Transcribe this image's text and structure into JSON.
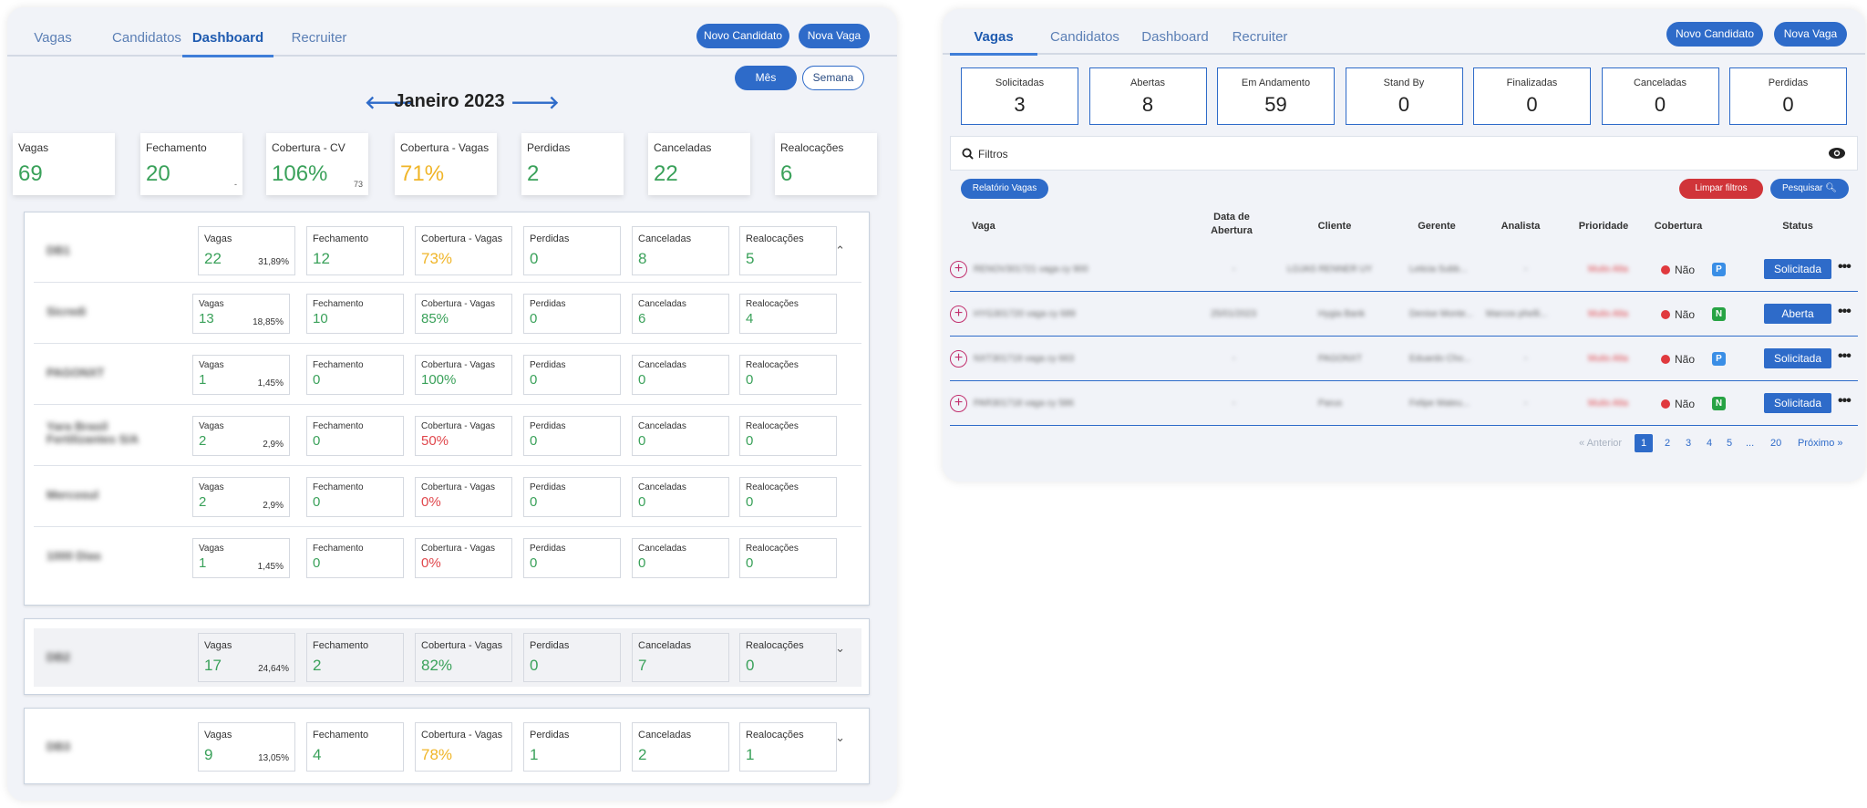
{
  "left": {
    "tabs": [
      "Vagas",
      "Candidatos",
      "Dashboard",
      "Recruiter"
    ],
    "active_tab": "Dashboard",
    "buttons": {
      "novo_candidato": "Novo Candidato",
      "nova_vaga": "Nova Vaga",
      "mes": "Mês",
      "semana": "Semana"
    },
    "month_title": "Janeiro 2023",
    "prev_arrow": "🡐",
    "next_arrow": "🡒",
    "kpis": [
      {
        "label": "Vagas",
        "value": "69",
        "sub": "",
        "color": "#3aa15a"
      },
      {
        "label": "Fechamento",
        "value": "20",
        "sub": "-",
        "color": "#3aa15a"
      },
      {
        "label": "Cobertura - CV",
        "value": "106%",
        "sub": "73",
        "color": "#3aa15a"
      },
      {
        "label": "Cobertura - Vagas",
        "value": "71%",
        "sub": "",
        "color": "#f0b528"
      },
      {
        "label": "Perdidas",
        "value": "2",
        "sub": "",
        "color": "#3aa15a"
      },
      {
        "label": "Canceladas",
        "value": "22",
        "sub": "",
        "color": "#3aa15a"
      },
      {
        "label": "Realocações",
        "value": "6",
        "sub": "",
        "color": "#3aa15a"
      }
    ],
    "cell_labels": [
      "Vagas",
      "Fechamento",
      "Cobertura - Vagas",
      "Perdidas",
      "Canceladas",
      "Realocações"
    ],
    "groups": [
      {
        "name": "DB1",
        "vagas": "22",
        "pct": "31,89%",
        "fechamento": "12",
        "cobertura": "73%",
        "cobertura_color": "yellow",
        "perdidas": "0",
        "canceladas": "8",
        "realocacoes": "5",
        "chevron": "⌃",
        "rows": [
          {
            "name": "Sicredi",
            "vagas": "13",
            "pct": "18,85%",
            "fechamento": "10",
            "cobertura": "85%",
            "cobertura_color": "green",
            "perdidas": "0",
            "canceladas": "6",
            "realocacoes": "4"
          },
          {
            "name": "PAGONXT",
            "vagas": "1",
            "pct": "1,45%",
            "fechamento": "0",
            "cobertura": "100%",
            "cobertura_color": "green",
            "perdidas": "0",
            "canceladas": "0",
            "realocacoes": "0"
          },
          {
            "name": "Yara Brasil Fertilizantes S/A",
            "vagas": "2",
            "pct": "2,9%",
            "fechamento": "0",
            "cobertura": "50%",
            "cobertura_color": "red",
            "perdidas": "0",
            "canceladas": "0",
            "realocacoes": "0"
          },
          {
            "name": "Mercosul",
            "vagas": "2",
            "pct": "2,9%",
            "fechamento": "0",
            "cobertura": "0%",
            "cobertura_color": "red",
            "perdidas": "0",
            "canceladas": "0",
            "realocacoes": "0"
          },
          {
            "name": "1000 Dias",
            "vagas": "1",
            "pct": "1,45%",
            "fechamento": "0",
            "cobertura": "0%",
            "cobertura_color": "red",
            "perdidas": "0",
            "canceladas": "0",
            "realocacoes": "0"
          }
        ]
      },
      {
        "name": "DB2",
        "vagas": "17",
        "pct": "24,64%",
        "fechamento": "2",
        "cobertura": "82%",
        "cobertura_color": "green",
        "perdidas": "0",
        "canceladas": "7",
        "realocacoes": "0",
        "chevron": "⌄",
        "rows": []
      },
      {
        "name": "DB3",
        "vagas": "9",
        "pct": "13,05%",
        "fechamento": "4",
        "cobertura": "78%",
        "cobertura_color": "yellow",
        "perdidas": "1",
        "canceladas": "2",
        "realocacoes": "1",
        "chevron": "⌄",
        "rows": []
      }
    ]
  },
  "right": {
    "tabs": [
      "Vagas",
      "Candidatos",
      "Dashboard",
      "Recruiter"
    ],
    "active_tab": "Vagas",
    "buttons": {
      "novo_candidato": "Novo Candidato",
      "nova_vaga": "Nova Vaga",
      "relatorio": "Relatório Vagas",
      "limpar": "Limpar filtros",
      "pesquisar": "Pesquisar"
    },
    "stats": [
      {
        "label": "Solicitadas",
        "value": "3"
      },
      {
        "label": "Abertas",
        "value": "8"
      },
      {
        "label": "Em Andamento",
        "value": "59"
      },
      {
        "label": "Stand By",
        "value": "0"
      },
      {
        "label": "Finalizadas",
        "value": "0"
      },
      {
        "label": "Canceladas",
        "value": "0"
      },
      {
        "label": "Perdidas",
        "value": "0"
      }
    ],
    "filters_label": "Filtros",
    "columns": {
      "vaga": "Vaga",
      "data_abertura_1": "Data de",
      "data_abertura_2": "Abertura",
      "cliente": "Cliente",
      "gerente": "Gerente",
      "analista": "Analista",
      "prioridade": "Prioridade",
      "cobertura": "Cobertura",
      "status": "Status"
    },
    "rows": [
      {
        "vaga": "RENOV301721 vaga cy 900",
        "data": "-",
        "cliente": "LOJAS RENNER UY",
        "gerente": "Leticia Subb...",
        "analista": "-",
        "prioridade": "Muito Alta",
        "cobertura": "Não",
        "badge": "P",
        "status": "Solicitada"
      },
      {
        "vaga": "HYG301720 vaga cy 689",
        "data": "25/01/2023",
        "cliente": "Hygia Bank",
        "gerente": "Denise Monte...",
        "analista": "Marcos phelli...",
        "prioridade": "Muito Alta",
        "cobertura": "Não",
        "badge": "N",
        "status": "Aberta"
      },
      {
        "vaga": "NXT301719 vaga cy 663",
        "data": "-",
        "cliente": "PAGONXT",
        "gerente": "Eduardo Cho...",
        "analista": "-",
        "prioridade": "Muito Alta",
        "cobertura": "Não",
        "badge": "P",
        "status": "Solicitada"
      },
      {
        "vaga": "PAR301718 vaga cy 586",
        "data": "-",
        "cliente": "Parus",
        "gerente": "Felipe Mateu...",
        "analista": "-",
        "prioridade": "Muito Alta",
        "cobertura": "Não",
        "badge": "N",
        "status": "Solicitada"
      }
    ],
    "pagination": {
      "prev": "« Anterior",
      "pages": [
        "1",
        "2",
        "3",
        "4",
        "5",
        "...",
        "20"
      ],
      "current": "1",
      "next": "Próximo »"
    }
  }
}
